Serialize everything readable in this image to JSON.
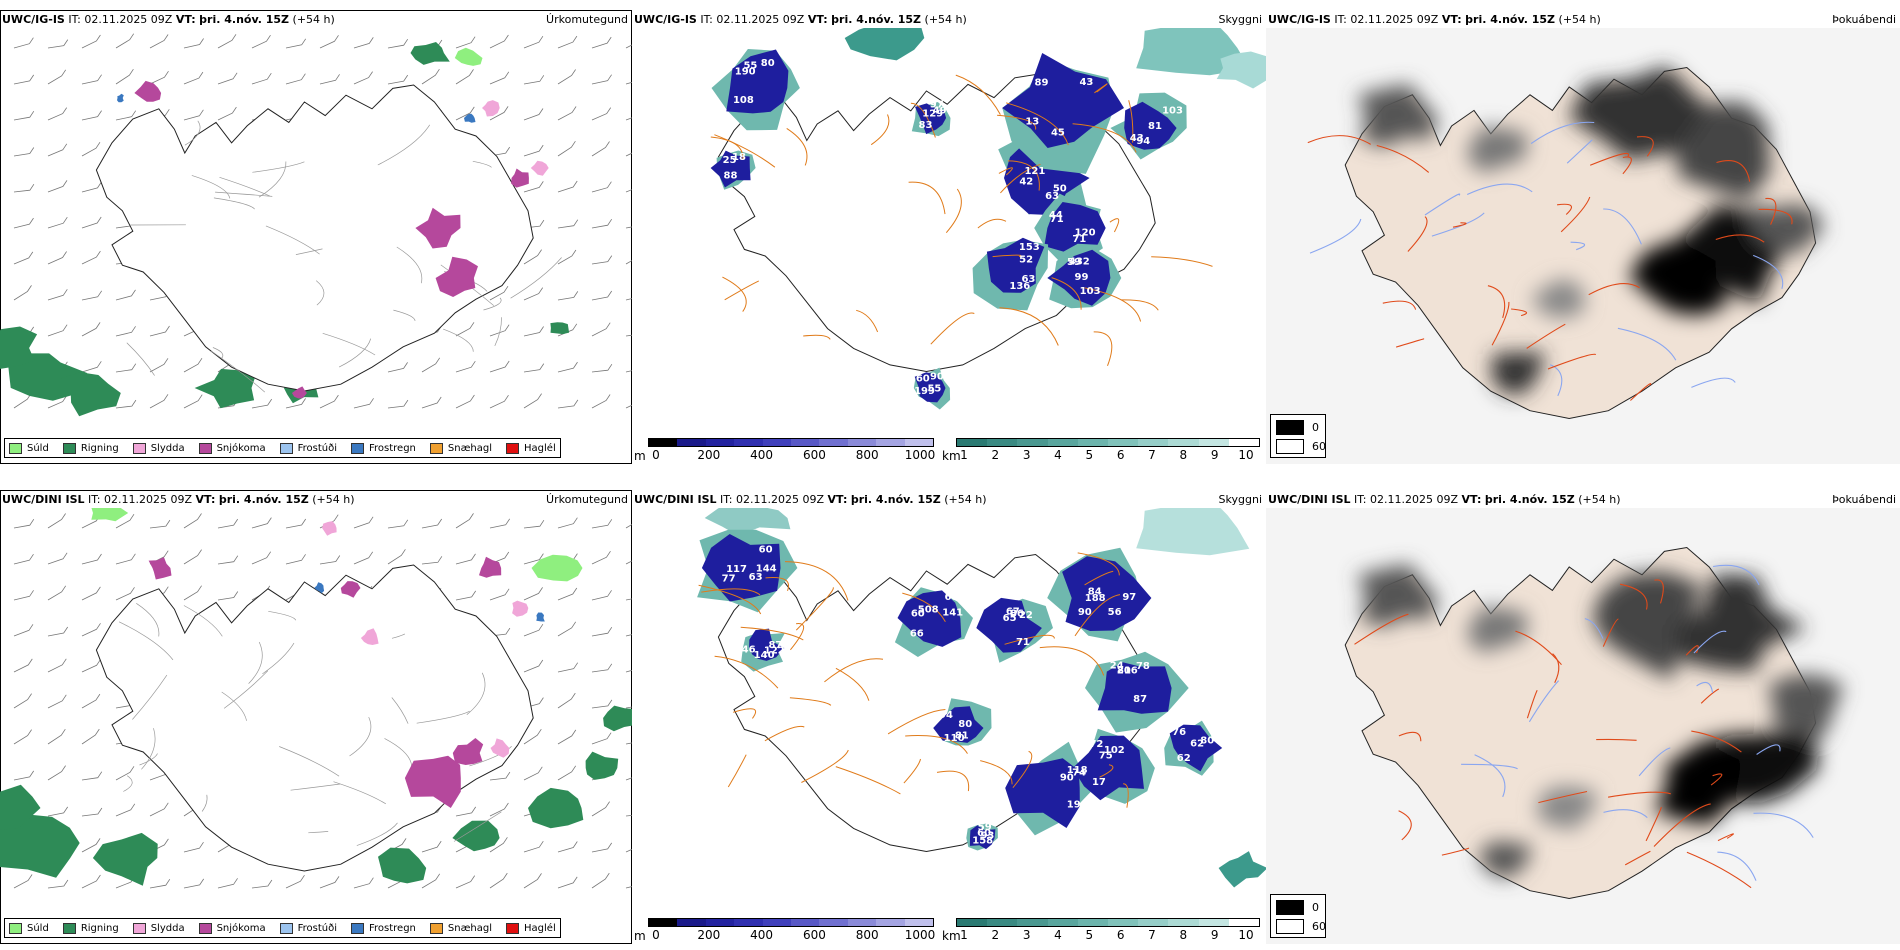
{
  "colors": {
    "precip_drizzle": "#8fef7f",
    "precip_rain": "#2e8b57",
    "precip_sleet": "#f0a6d8",
    "precip_snow": "#b5489c",
    "precip_freezing_drizzle": "#9cc4ef",
    "precip_freezing_rain": "#3a78c0",
    "precip_snow_grains": "#f0a030",
    "precip_hail": "#e01010",
    "cloud_low": "#1e1e9e",
    "cloud_high": "#3c9a8c",
    "road": "#e07b1a",
    "coast": "#000000",
    "land_tint": "#f0e2d6",
    "river": "#8aa6f0"
  },
  "rows": [
    {
      "header": {
        "model": "UWC/IG-IS",
        "it_label": "IT:",
        "it_value": "02.11.2025 09Z",
        "vt_label": "VT:",
        "vt_value": "þri. 4.nóv. 15Z",
        "lead": "(+54 h)"
      },
      "cloud_labels": [
        "55",
        "49",
        "63",
        "44",
        "43",
        "43",
        "63",
        "99",
        "90",
        "18",
        "108",
        "97",
        "42",
        "71",
        "45",
        "81",
        "52",
        "59",
        "60",
        "25",
        "80",
        "83",
        "121",
        "71",
        "89",
        "103",
        "153",
        "432",
        "55",
        "88",
        "190",
        "129",
        "50",
        "120",
        "13",
        "94",
        "136",
        "103",
        "199"
      ]
    },
    {
      "header": {
        "model": "UWC/DINI ISL",
        "it_label": "IT:",
        "it_value": "02.11.2025 09Z",
        "vt_label": "VT:",
        "vt_value": "þri. 4.nóv. 15Z",
        "lead": "(+54 h)"
      },
      "cloud_labels": [
        "117",
        "66",
        "67",
        "56",
        "24",
        "19",
        "102",
        "80",
        "46",
        "62",
        "60",
        "77",
        "60",
        "86",
        "97",
        "78",
        "118",
        "75",
        "94",
        "122",
        "80",
        "59",
        "60",
        "68",
        "71",
        "90",
        "87",
        "90",
        "72",
        "81",
        "87",
        "76",
        "93",
        "63",
        "508",
        "22",
        "84",
        "81",
        "74",
        "17",
        "110",
        "140",
        "62",
        "158",
        "144",
        "141",
        "65",
        "188",
        "206"
      ]
    }
  ],
  "panel_titles": {
    "precip": "Úrkomutegund",
    "clouds": "Skyggni",
    "cloudcover": "Þokuábendi"
  },
  "precip_legend": [
    {
      "label": "Súld",
      "color": "#8fef7f"
    },
    {
      "label": "Rigning",
      "color": "#2e8b57"
    },
    {
      "label": "Slydda",
      "color": "#f0a6d8"
    },
    {
      "label": "Snjókoma",
      "color": "#b5489c"
    },
    {
      "label": "Frostúði",
      "color": "#9cc4ef"
    },
    {
      "label": "Frostregn",
      "color": "#3a78c0"
    },
    {
      "label": "Snæhagl",
      "color": "#f0a030"
    },
    {
      "label": "Haglél",
      "color": "#e01010"
    }
  ],
  "colorbar_m": {
    "unit": "m",
    "ticks": [
      "0",
      "200",
      "400",
      "600",
      "800",
      "1000"
    ],
    "colors": [
      "#000000",
      "#1a1a8a",
      "#2323a0",
      "#3030b0",
      "#4040bc",
      "#5858c6",
      "#7070d0",
      "#8a8ad8",
      "#a4a4e2",
      "#c0c0ec"
    ]
  },
  "colorbar_km": {
    "unit": "km",
    "ticks": [
      "1",
      "2",
      "3",
      "4",
      "5",
      "6",
      "7",
      "8",
      "9",
      "10"
    ],
    "colors": [
      "#2a7a72",
      "#3a8a82",
      "#4a9890",
      "#5aa69e",
      "#6cb4ac",
      "#80c2ba",
      "#96cec8",
      "#acdad4",
      "#c4e6e2",
      "#ffffff"
    ]
  },
  "cloudcover_legend": [
    {
      "label": "0",
      "color": "#000000"
    },
    {
      "label": "60",
      "color": "#ffffff"
    }
  ]
}
